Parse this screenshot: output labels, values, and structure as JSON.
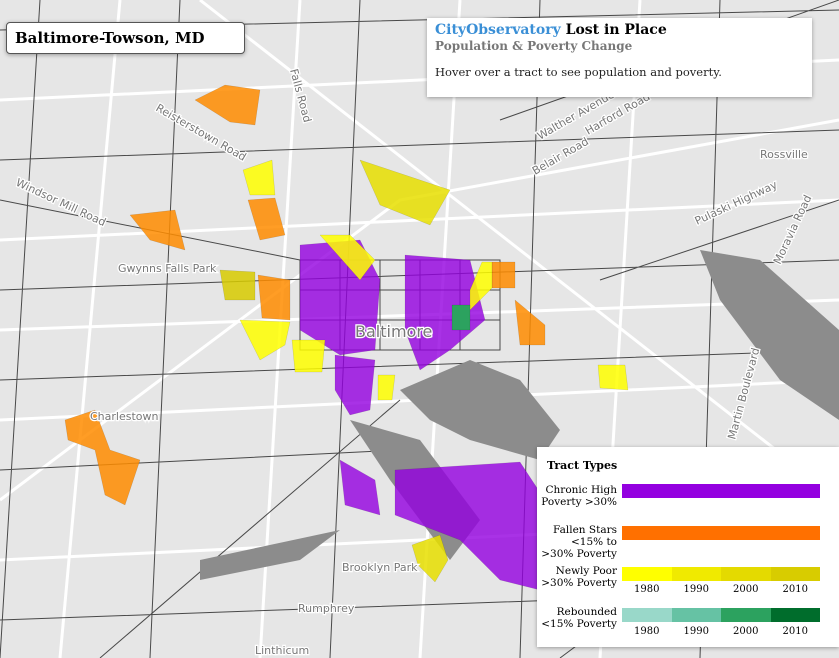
{
  "region_box": {
    "title": "Baltimore-Towson, MD"
  },
  "info_box": {
    "brand": "CityObservatory",
    "title": "Lost in Place",
    "subtitle": "Population & Poverty Change",
    "hint": "Hover over a tract to see population and poverty."
  },
  "map_labels": [
    "Falls Road",
    "Reisterstown Road",
    "Windsor Mill Road",
    "Gwynns Falls Park",
    "Charlestown",
    "Baltimore",
    "Rossville",
    "Pulaski Highway",
    "Belair Road",
    "Harford Road",
    "Moravia Road",
    "Martin Boulevard",
    "Brooklyn Park",
    "Rumphrey",
    "Linthicum",
    "Walther Avenue"
  ],
  "legend": {
    "title": "Tract Types",
    "items": [
      {
        "label": "Chronic High Poverty >30%"
      },
      {
        "label": "Fallen Stars <15% to >30% Poverty"
      },
      {
        "label": "Newly Poor >30% Poverty",
        "years": [
          "1980",
          "1990",
          "2000",
          "2010"
        ]
      },
      {
        "label": "Rebounded <15% Poverty",
        "years": [
          "1980",
          "1990",
          "2000",
          "2010"
        ]
      }
    ]
  }
}
